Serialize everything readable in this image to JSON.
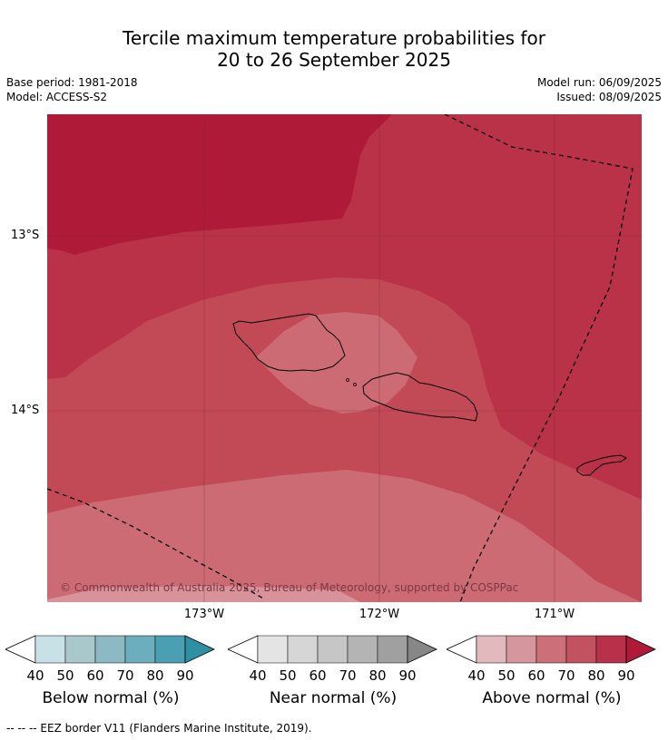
{
  "title": {
    "line1": "Tercile maximum temperature probabilities for",
    "line2": "20 to 26 September 2025"
  },
  "meta": {
    "base_period": "Base period: 1981-2018",
    "model": "Model: ACCESS-S2",
    "model_run": "Model run: 06/09/2025",
    "issued": "Issued: 08/09/2025"
  },
  "map": {
    "lon_labels": [
      "173°W",
      "172°W",
      "171°W"
    ],
    "lat_labels": [
      "13°S",
      "14°S"
    ],
    "copyright": "© Commonwealth of Australia 2025, Bureau of Meteorology, supported by COSPPac",
    "colors": {
      "above_60_70": "#cc6b74",
      "above_70_80": "#c24a57",
      "above_80_90": "#b93248",
      "above_90": "#ae1a38",
      "above_50_60": "#d8929a"
    }
  },
  "colorbars": [
    {
      "title": "Below normal (%)",
      "ticks": [
        "40",
        "50",
        "60",
        "70",
        "80",
        "90"
      ],
      "colors": [
        "#ffffff",
        "#c8e1e6",
        "#a8c8cc",
        "#8cb9c4",
        "#6caebd",
        "#4a9fb2",
        "#2f8fa3"
      ]
    },
    {
      "title": "Near normal (%)",
      "ticks": [
        "40",
        "50",
        "60",
        "70",
        "80",
        "90"
      ],
      "colors": [
        "#ffffff",
        "#e4e4e4",
        "#d6d6d6",
        "#c6c6c6",
        "#b4b4b4",
        "#a0a0a0",
        "#878787"
      ]
    },
    {
      "title": "Above normal (%)",
      "ticks": [
        "40",
        "50",
        "60",
        "70",
        "80",
        "90"
      ],
      "colors": [
        "#ffffff",
        "#e2b9bd",
        "#d6969d",
        "#cc6f78",
        "#c2525f",
        "#b9304a",
        "#ae1a38"
      ]
    }
  ],
  "footnote": "-- -- -- EEZ border V11 (Flanders Marine Institute, 2019)."
}
